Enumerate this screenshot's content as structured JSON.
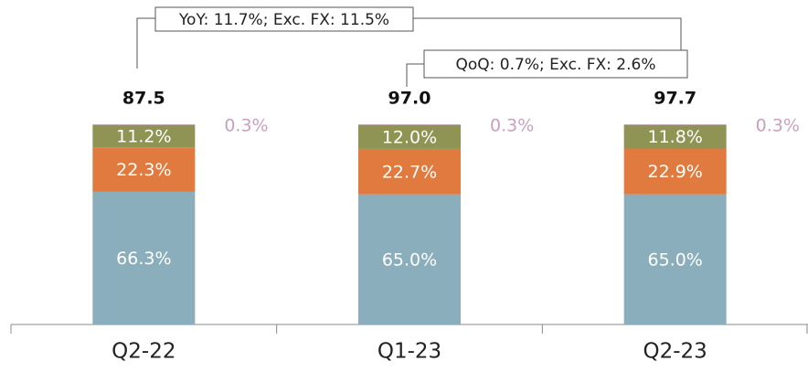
{
  "chart_data": {
    "type": "stacked_bar",
    "categories": [
      "Q2-22",
      "Q1-23",
      "Q2-23"
    ],
    "series": [
      {
        "color": "#8aaebb",
        "values": [
          66.3,
          65.0,
          65.0
        ],
        "value_labels": [
          "66.3%",
          "65.0%",
          "65.0%"
        ]
      },
      {
        "color": "#e07a3e",
        "values": [
          22.3,
          22.7,
          22.9
        ],
        "value_labels": [
          "22.3%",
          "22.7%",
          "22.9%"
        ]
      },
      {
        "color": "#8f9455",
        "values": [
          11.2,
          12.0,
          11.8
        ],
        "value_labels": [
          "11.2%",
          "12.0%",
          "11.8%"
        ]
      },
      {
        "color": "#c9a0c0",
        "values": [
          0.3,
          0.3,
          0.3
        ],
        "value_labels": [
          "0.3%",
          "0.3%",
          "0.3%"
        ]
      }
    ],
    "totals": {
      "values": [
        87.5,
        97.0,
        97.7
      ],
      "value_labels": [
        "87.5",
        "97.0",
        "97.7"
      ]
    },
    "annotations": [
      "YoY: 11.7%; Exc. FX: 11.5%",
      "QoQ: 0.7%; Exc. FX: 2.6%"
    ]
  }
}
